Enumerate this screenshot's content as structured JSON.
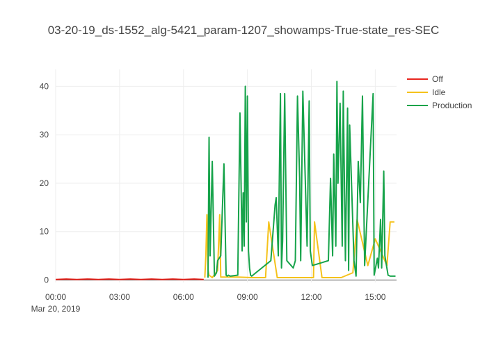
{
  "chart_data": {
    "type": "line",
    "title": "03-20-19_ds-1552_alg-5421_param-1207_showamps-True-state_res-SEC",
    "xlabel": "",
    "ylabel": "",
    "x_axis": {
      "range_hours": [
        0,
        16
      ],
      "ticks": [
        {
          "hour": 0,
          "label": "00:00"
        },
        {
          "hour": 3,
          "label": "03:00"
        },
        {
          "hour": 6,
          "label": "06:00"
        },
        {
          "hour": 9,
          "label": "09:00"
        },
        {
          "hour": 12,
          "label": "12:00"
        },
        {
          "hour": 15,
          "label": "15:00"
        }
      ],
      "date_label": "Mar 20, 2019"
    },
    "y_axis": {
      "range": [
        -0.5,
        43.5
      ],
      "ticks": [
        0,
        10,
        20,
        30,
        40
      ]
    },
    "grid": true,
    "legend": {
      "placement": "top-right"
    },
    "series": [
      {
        "name": "Off",
        "color": "#e8251e",
        "x": [
          0,
          0.5,
          1,
          1.5,
          2,
          2.5,
          3,
          3.5,
          4,
          4.5,
          5,
          5.5,
          6,
          6.5,
          6.95
        ],
        "y": [
          0.1,
          0.2,
          0.1,
          0.2,
          0.1,
          0.2,
          0.1,
          0.2,
          0.1,
          0.2,
          0.1,
          0.2,
          0.1,
          0.2,
          0.1
        ]
      },
      {
        "name": "Idle",
        "color": "#f5c21b",
        "x": [
          7.0,
          7.05,
          7.1,
          7.15,
          7.2,
          7.35,
          7.6,
          7.7,
          7.75,
          8.05,
          8.55,
          9.2,
          9.85,
          10.0,
          10.4,
          12.1,
          12.15,
          12.5,
          12.85,
          13.4,
          13.95,
          14.15,
          14.65,
          15.0,
          15.55,
          15.7,
          15.9
        ],
        "y": [
          0.5,
          5.0,
          13.5,
          2.0,
          1.0,
          0.5,
          2.0,
          13.5,
          0.6,
          0.6,
          0.6,
          0.5,
          0.5,
          12.0,
          0.5,
          0.5,
          12.0,
          0.5,
          0.5,
          0.5,
          1.5,
          12.5,
          3.0,
          8.5,
          3.0,
          12.0,
          12.0
        ]
      },
      {
        "name": "Production",
        "color": "#16a34a",
        "x": [
          7.15,
          7.2,
          7.25,
          7.35,
          7.45,
          7.55,
          7.6,
          7.75,
          7.9,
          8.0,
          8.05,
          8.1,
          8.2,
          8.55,
          8.65,
          8.75,
          8.8,
          8.85,
          8.9,
          8.95,
          9.0,
          9.05,
          9.1,
          9.15,
          9.2,
          10.1,
          10.3,
          10.35,
          10.45,
          10.55,
          10.6,
          10.65,
          10.75,
          10.85,
          11.15,
          11.25,
          11.35,
          11.45,
          11.5,
          11.6,
          11.8,
          11.9,
          11.95,
          12.05,
          12.8,
          12.9,
          13.0,
          13.05,
          13.15,
          13.2,
          13.25,
          13.35,
          13.45,
          13.5,
          13.6,
          13.7,
          13.75,
          13.8,
          14.0,
          14.1,
          14.2,
          14.3,
          14.4,
          14.5,
          14.9,
          14.95,
          15.1,
          15.15,
          15.25,
          15.3,
          15.4,
          15.45,
          15.6,
          15.7,
          15.8,
          15.9,
          15.95
        ],
        "y": [
          0.5,
          29.5,
          5.0,
          24.5,
          0.8,
          1.5,
          4.0,
          5.0,
          24.0,
          1.0,
          0.8,
          1.0,
          0.8,
          1.0,
          34.5,
          6.0,
          18.0,
          7.0,
          40.0,
          12.0,
          38.0,
          6.0,
          2.5,
          1.0,
          0.8,
          4.0,
          15.5,
          17.0,
          5.0,
          38.5,
          2.5,
          8.0,
          38.5,
          4.0,
          2.5,
          4.0,
          38.0,
          21.0,
          4.0,
          39.0,
          7.0,
          37.0,
          6.0,
          3.0,
          4.0,
          21.0,
          5.0,
          26.0,
          7.0,
          41.0,
          20.0,
          36.5,
          7.0,
          39.0,
          4.0,
          35.5,
          2.0,
          32.0,
          4.0,
          0.8,
          24.5,
          16.0,
          38.0,
          3.0,
          38.5,
          1.0,
          4.5,
          2.5,
          12.5,
          2.5,
          22.5,
          5.0,
          1.0,
          0.8,
          0.8,
          0.8,
          0.8
        ]
      }
    ]
  }
}
